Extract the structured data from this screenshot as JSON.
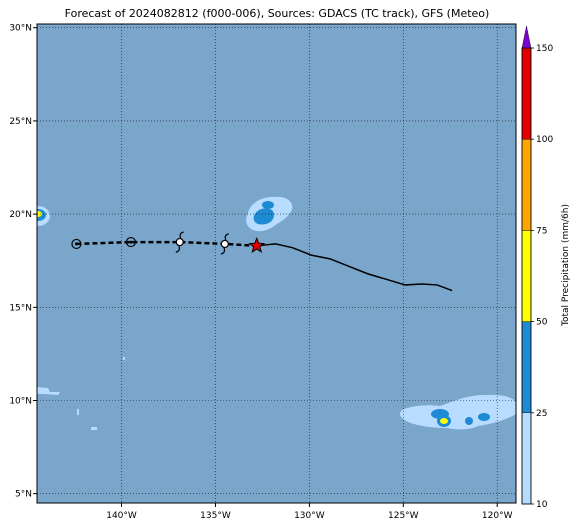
{
  "title": "Forecast of 2024082812 (f000-006), Sources: GDACS (TC track), GFS (Meteo)",
  "map": {
    "lon_range": [
      -144.5,
      -119
    ],
    "lat_range": [
      4.5,
      30.2
    ],
    "lon_ticks": [
      {
        "value": -140,
        "label": "140°W"
      },
      {
        "value": -135,
        "label": "135°W"
      },
      {
        "value": -130,
        "label": "130°W"
      },
      {
        "value": -125,
        "label": "125°W"
      },
      {
        "value": -120,
        "label": "120°W"
      }
    ],
    "lat_ticks": [
      {
        "value": 5,
        "label": "5°N"
      },
      {
        "value": 10,
        "label": "10°N"
      },
      {
        "value": 15,
        "label": "15°N"
      },
      {
        "value": 20,
        "label": "20°N"
      },
      {
        "value": 25,
        "label": "25°N"
      },
      {
        "value": 30,
        "label": "30°N"
      }
    ],
    "gridlines": true,
    "ocean_color": "#7aa6cc",
    "current_position": {
      "lon": -132.8,
      "lat": 18.3
    },
    "observed_track": [
      [
        -132.8,
        18.3
      ],
      [
        -131.8,
        18.4
      ],
      [
        -130.9,
        18.2
      ],
      [
        -129.9,
        17.8
      ],
      [
        -128.9,
        17.6
      ],
      [
        -127.9,
        17.2
      ],
      [
        -126.9,
        16.8
      ],
      [
        -125.9,
        16.5
      ],
      [
        -124.9,
        16.2
      ],
      [
        -124.0,
        16.25
      ],
      [
        -123.2,
        16.2
      ],
      [
        -122.4,
        15.9
      ]
    ],
    "forecast_track": [
      [
        -142.4,
        18.4
      ],
      [
        -139.5,
        18.5
      ],
      [
        -136.9,
        18.5
      ],
      [
        -134.5,
        18.4
      ],
      [
        -132.8,
        18.3
      ]
    ],
    "forecast_points": [
      {
        "lon": -142.4,
        "lat": 18.4,
        "symbol": "low"
      },
      {
        "lon": -139.5,
        "lat": 18.5,
        "symbol": "low"
      },
      {
        "lon": -136.9,
        "lat": 18.5,
        "symbol": "storm"
      },
      {
        "lon": -134.5,
        "lat": 18.4,
        "symbol": "storm"
      }
    ]
  },
  "colorbar": {
    "label": "Total Precipitation (mm/6h)",
    "ticks": [
      "10",
      "25",
      "50",
      "75",
      "100",
      "150"
    ],
    "segments": [
      {
        "from": 10,
        "to": 25,
        "color": "#b8dcff"
      },
      {
        "from": 25,
        "to": 50,
        "color": "#1f8ad4"
      },
      {
        "from": 50,
        "to": 75,
        "color": "#ffff00"
      },
      {
        "from": 75,
        "to": 100,
        "color": "#ffa500"
      },
      {
        "from": 100,
        "to": 150,
        "color": "#e00000"
      }
    ],
    "extend_color": "#7b00d4"
  }
}
